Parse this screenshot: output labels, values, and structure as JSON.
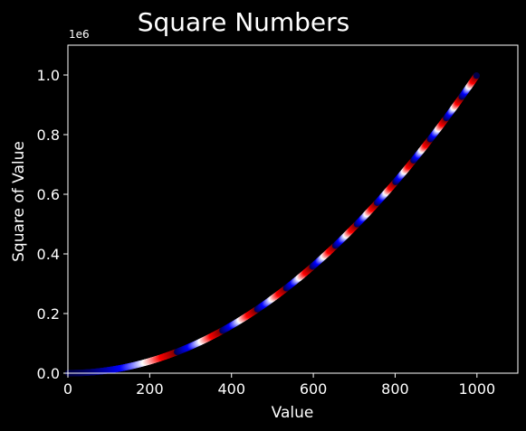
{
  "chart_data": {
    "type": "scatter",
    "title": "Square Numbers",
    "xlabel": "Value",
    "ylabel": "Square of Value",
    "offset_label": "1e6",
    "xlim": [
      0,
      1100
    ],
    "ylim": [
      0,
      1100000
    ],
    "x_ticks": [
      0,
      200,
      400,
      600,
      800,
      1000
    ],
    "x_tick_labels": [
      "0",
      "200",
      "400",
      "600",
      "800",
      "1000"
    ],
    "y_ticks": [
      0,
      200000,
      400000,
      600000,
      800000,
      1000000
    ],
    "y_tick_labels": [
      "0.0",
      "0.2",
      "0.4",
      "0.6",
      "0.8",
      "1.0"
    ],
    "series": [
      {
        "x_start": 1,
        "x_end": 999,
        "x_step": 1,
        "y_formula": "x^2",
        "colormap": "seismic (color cycles with value)"
      }
    ],
    "grid": false,
    "colors": {
      "background": "#000000",
      "foreground": "#ffffff",
      "cmap_low": "#00004c",
      "cmap_blue": "#0000ff",
      "cmap_mid": "#ffffff",
      "cmap_red": "#ff0000",
      "cmap_high": "#800000"
    }
  }
}
